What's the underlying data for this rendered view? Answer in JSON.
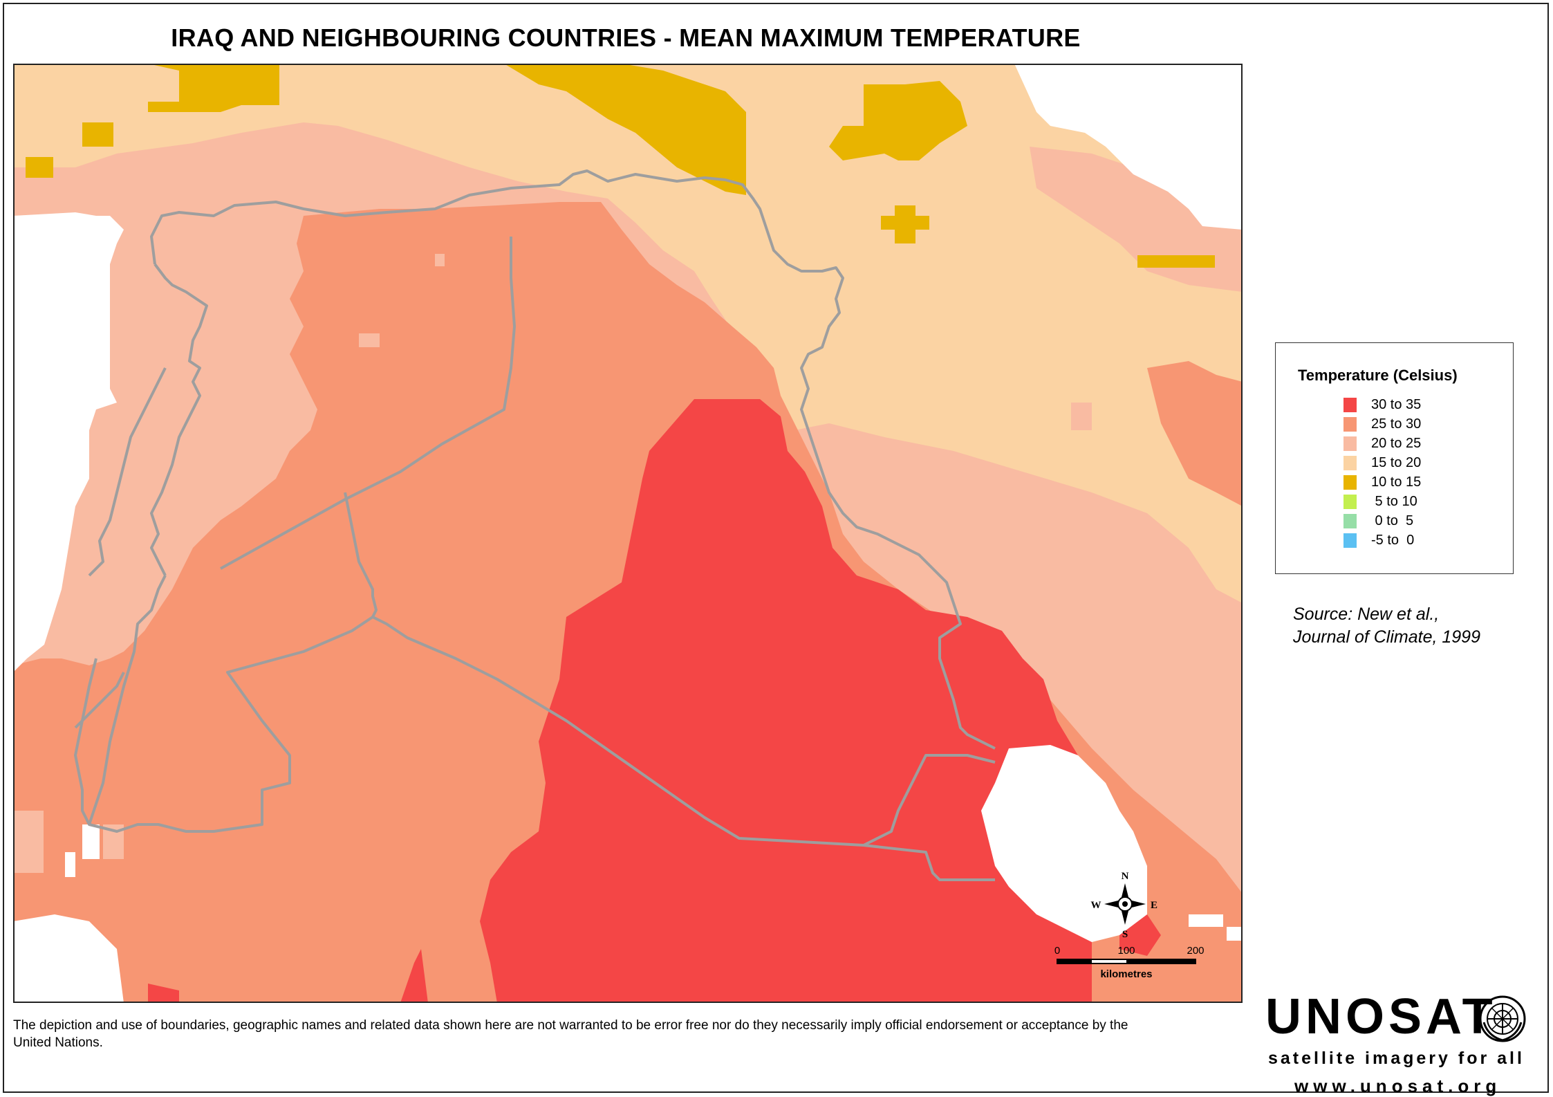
{
  "title": "IRAQ AND NEIGHBOURING COUNTRIES - MEAN MAXIMUM TEMPERATURE",
  "map": {
    "border_color": "#9e9e9e",
    "water_color": "#ffffff"
  },
  "legend": {
    "title": "Temperature (Celsius)",
    "items": [
      {
        "label": "30 to 35",
        "color": "#f44646"
      },
      {
        "label": "25 to 30",
        "color": "#f79673"
      },
      {
        "label": "20 to 25",
        "color": "#f9bba2"
      },
      {
        "label": "15 to 20",
        "color": "#fbd3a3"
      },
      {
        "label": "10 to 15",
        "color": "#e8b400"
      },
      {
        "label": " 5 to 10",
        "color": "#c3ef4f"
      },
      {
        "label": " 0 to  5",
        "color": "#96dea7"
      },
      {
        "label": "-5 to  0",
        "color": "#5bc0f2"
      }
    ]
  },
  "source": {
    "line1": "Source: New et al.,",
    "line2": "Journal of Climate, 1999"
  },
  "compass": {
    "n": "N",
    "s": "S",
    "e": "E",
    "w": "W"
  },
  "scale_bar": {
    "ticks": [
      "0",
      "100",
      "200"
    ],
    "unit": "kilometres"
  },
  "disclaimer": "The depiction and use of boundaries, geographic names and related data shown here are not warranted to be error free nor do they necessarily imply official endorsement or acceptance by the United Nations.",
  "logo": {
    "name": "UNOSAT",
    "tagline": "satellite imagery for all",
    "url": "www.unosat.org"
  }
}
